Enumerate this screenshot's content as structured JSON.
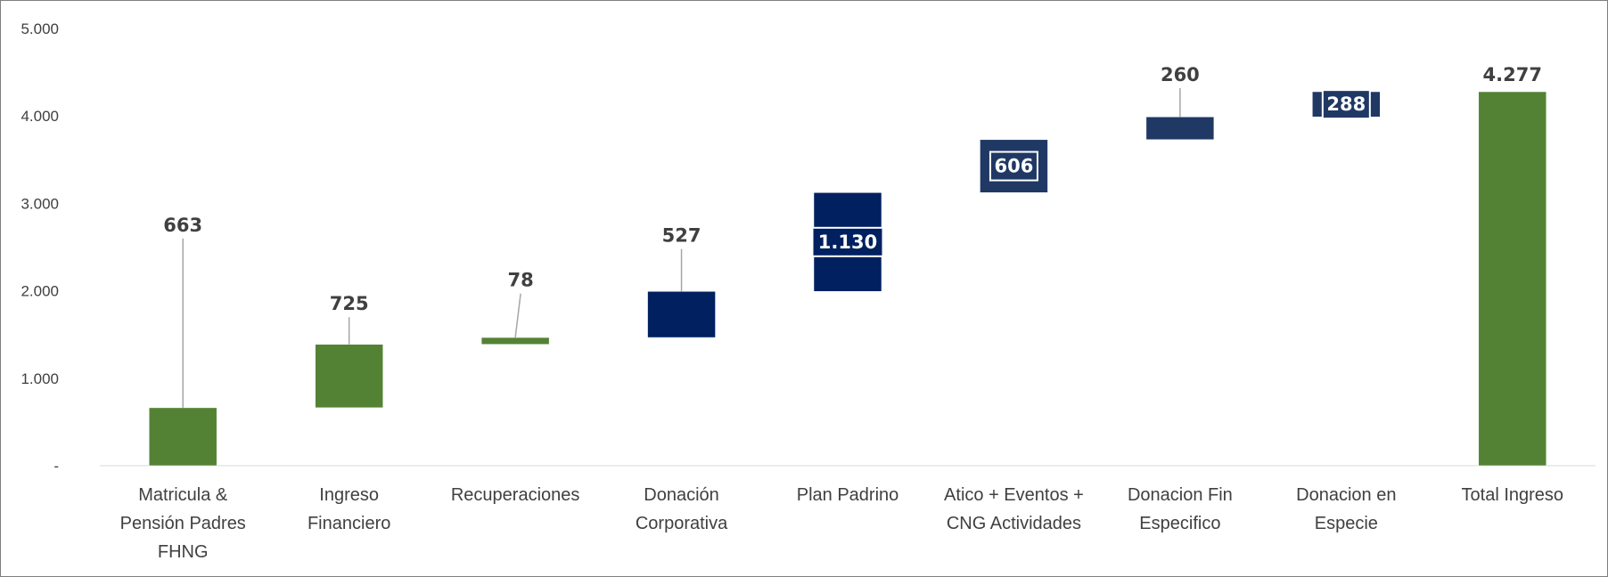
{
  "chart_data": {
    "type": "bar",
    "subtype": "waterfall",
    "ylim": [
      0,
      5000
    ],
    "yticks": [
      {
        "value": 0,
        "label": "-"
      },
      {
        "value": 1000,
        "label": "1.000"
      },
      {
        "value": 2000,
        "label": "2.000"
      },
      {
        "value": 3000,
        "label": "3.000"
      },
      {
        "value": 4000,
        "label": "4.000"
      },
      {
        "value": 5000,
        "label": "5.000"
      }
    ],
    "grid": false,
    "colors": {
      "green": "#548235",
      "navy": "#002060",
      "slate": "#203864"
    },
    "bars": [
      {
        "category": [
          "Matricula &",
          "Pensión Padres",
          "FHNG"
        ],
        "start": 0,
        "value": 663,
        "label": "663",
        "color": "green",
        "label_pos": "callout",
        "label_y": 2680
      },
      {
        "category": [
          "Ingreso",
          "Financiero"
        ],
        "start": 663,
        "value": 725,
        "label": "725",
        "color": "green",
        "label_pos": "callout",
        "label_y": 1780
      },
      {
        "category": [
          "Recuperaciones"
        ],
        "start": 1388,
        "value": 78,
        "label": "78",
        "color": "green",
        "label_pos": "callout",
        "label_y": 2050
      },
      {
        "category": [
          "Donación",
          "Corporativa"
        ],
        "start": 1466,
        "value": 527,
        "label": "527",
        "color": "navy",
        "label_pos": "callout",
        "label_y": 2560
      },
      {
        "category": [
          "Plan Padrino"
        ],
        "start": 1993,
        "value": 1130,
        "label": "1.130",
        "color": "navy",
        "label_pos": "inside"
      },
      {
        "category": [
          "Atico + Eventos +",
          "CNG Actividades"
        ],
        "start": 3123,
        "value": 606,
        "label": "606",
        "color": "slate",
        "label_pos": "inside"
      },
      {
        "category": [
          "Donacion Fin",
          "Especifico"
        ],
        "start": 3729,
        "value": 260,
        "label": "260",
        "color": "slate",
        "label_pos": "callout",
        "label_y": 4400
      },
      {
        "category": [
          "Donacion en",
          "Especie"
        ],
        "start": 3989,
        "value": 288,
        "label": "288",
        "color": "slate",
        "label_pos": "inside"
      },
      {
        "category": [
          "Total Ingreso"
        ],
        "start": 0,
        "value": 4277,
        "label": "4.277",
        "color": "green",
        "label_pos": "above"
      }
    ]
  }
}
